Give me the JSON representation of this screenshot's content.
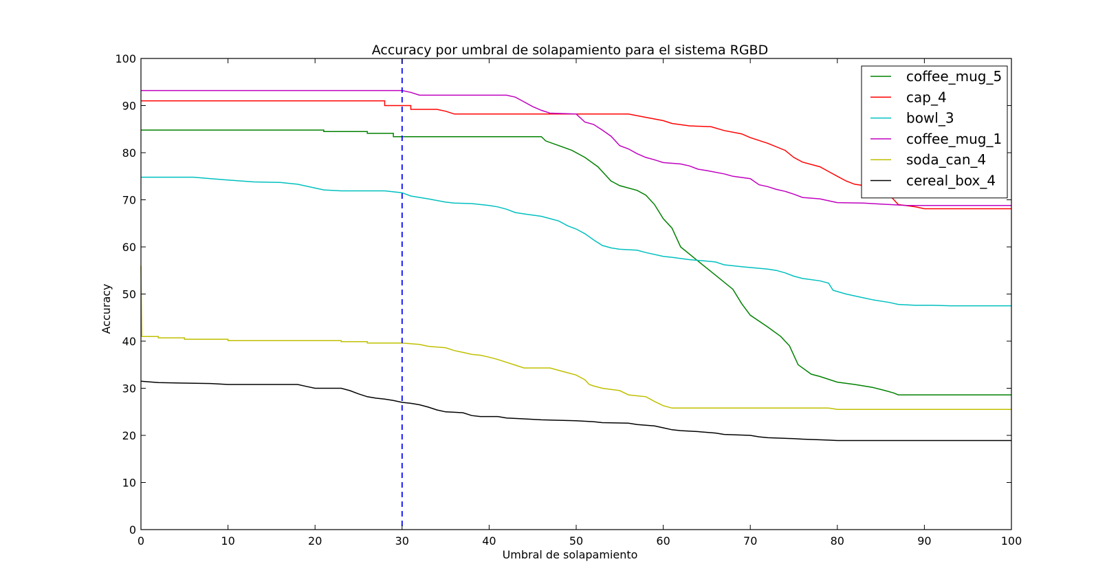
{
  "chart_data": {
    "type": "line",
    "title": "Accuracy por umbral de solapamiento para el sistema RGBD",
    "xlabel": "Umbral de solapamiento",
    "ylabel": "Accuracy",
    "xlim": [
      0,
      100
    ],
    "ylim": [
      0,
      100
    ],
    "xticks": [
      "0",
      "10",
      "20",
      "30",
      "40",
      "50",
      "60",
      "70",
      "80",
      "90",
      "100"
    ],
    "yticks": [
      "0",
      "10",
      "20",
      "30",
      "40",
      "50",
      "60",
      "70",
      "80",
      "90",
      "100"
    ],
    "grid": false,
    "legend_position": "top-right",
    "vline": {
      "x": 30,
      "color": "#0000ff",
      "style": "dashed"
    },
    "series": [
      {
        "name": "coffee_mug_5",
        "color": "#008000",
        "points": [
          [
            0,
            84.8
          ],
          [
            21,
            84.8
          ],
          [
            21,
            84.5
          ],
          [
            26,
            84.5
          ],
          [
            26,
            84.1
          ],
          [
            29,
            84.1
          ],
          [
            29,
            83.4
          ],
          [
            46,
            83.4
          ],
          [
            46.5,
            82.5
          ],
          [
            48,
            81.5
          ],
          [
            49.5,
            80.5
          ],
          [
            51,
            79
          ],
          [
            52.5,
            77
          ],
          [
            54,
            74
          ],
          [
            55,
            73
          ],
          [
            57,
            72
          ],
          [
            58,
            71
          ],
          [
            59,
            69
          ],
          [
            60,
            66
          ],
          [
            61,
            64
          ],
          [
            62,
            60
          ],
          [
            64,
            57
          ],
          [
            66,
            54
          ],
          [
            68,
            51
          ],
          [
            69,
            48
          ],
          [
            70,
            45.5
          ],
          [
            72,
            43
          ],
          [
            73.5,
            41
          ],
          [
            74.5,
            39
          ],
          [
            75.5,
            35
          ],
          [
            77,
            33
          ],
          [
            78,
            32.5
          ],
          [
            80,
            31.3
          ],
          [
            82,
            30.8
          ],
          [
            84,
            30.2
          ],
          [
            85.5,
            29.5
          ],
          [
            86.5,
            29
          ],
          [
            87,
            28.6
          ],
          [
            100,
            28.6
          ]
        ]
      },
      {
        "name": "cap_4",
        "color": "#ff0000",
        "points": [
          [
            0,
            91
          ],
          [
            28,
            91
          ],
          [
            28,
            90
          ],
          [
            31,
            90
          ],
          [
            31,
            89.2
          ],
          [
            34,
            89.2
          ],
          [
            35,
            88.8
          ],
          [
            36,
            88.2
          ],
          [
            56,
            88.2
          ],
          [
            58,
            87.5
          ],
          [
            60,
            86.8
          ],
          [
            61,
            86.2
          ],
          [
            63,
            85.7
          ],
          [
            65.5,
            85.5
          ],
          [
            67,
            84.7
          ],
          [
            69,
            84
          ],
          [
            70,
            83.2
          ],
          [
            72,
            82
          ],
          [
            74,
            80.5
          ],
          [
            75,
            79
          ],
          [
            76,
            78
          ],
          [
            78,
            77
          ],
          [
            79,
            76
          ],
          [
            80,
            75
          ],
          [
            81,
            74
          ],
          [
            82,
            73.3
          ],
          [
            85,
            72.5
          ],
          [
            86,
            71
          ],
          [
            86.5,
            70
          ],
          [
            87,
            69
          ],
          [
            89,
            68.5
          ],
          [
            90,
            68.1
          ],
          [
            100,
            68.1
          ]
        ]
      },
      {
        "name": "bowl_3",
        "color": "#00bfbf",
        "points": [
          [
            0,
            74.8
          ],
          [
            6,
            74.8
          ],
          [
            8,
            74.5
          ],
          [
            10,
            74.2
          ],
          [
            13,
            73.8
          ],
          [
            16,
            73.7
          ],
          [
            18,
            73.3
          ],
          [
            20,
            72.5
          ],
          [
            21,
            72.1
          ],
          [
            23,
            71.9
          ],
          [
            28,
            71.9
          ],
          [
            30,
            71.5
          ],
          [
            31,
            70.8
          ],
          [
            33,
            70.2
          ],
          [
            35,
            69.5
          ],
          [
            36,
            69.3
          ],
          [
            38,
            69.2
          ],
          [
            40,
            68.8
          ],
          [
            41,
            68.5
          ],
          [
            42,
            68
          ],
          [
            43,
            67.3
          ],
          [
            44,
            67
          ],
          [
            46,
            66.5
          ],
          [
            47,
            66
          ],
          [
            48,
            65.5
          ],
          [
            49,
            64.5
          ],
          [
            50,
            63.8
          ],
          [
            51,
            62.8
          ],
          [
            52,
            61.5
          ],
          [
            53,
            60.3
          ],
          [
            54,
            59.8
          ],
          [
            55,
            59.5
          ],
          [
            57,
            59.3
          ],
          [
            58,
            58.8
          ],
          [
            60,
            58
          ],
          [
            61,
            57.8
          ],
          [
            63,
            57.3
          ],
          [
            65,
            57
          ],
          [
            66,
            56.8
          ],
          [
            67,
            56.2
          ],
          [
            69,
            55.8
          ],
          [
            72,
            55.3
          ],
          [
            73,
            55
          ],
          [
            74,
            54.5
          ],
          [
            75,
            53.8
          ],
          [
            76,
            53.3
          ],
          [
            78,
            52.8
          ],
          [
            79,
            52.3
          ],
          [
            79.5,
            50.8
          ],
          [
            81,
            50
          ],
          [
            83,
            49.2
          ],
          [
            84,
            48.8
          ],
          [
            86,
            48.2
          ],
          [
            87,
            47.8
          ],
          [
            89,
            47.6
          ],
          [
            91,
            47.6
          ],
          [
            93,
            47.5
          ],
          [
            100,
            47.5
          ]
        ]
      },
      {
        "name": "coffee_mug_1",
        "color": "#bf00bf",
        "points": [
          [
            0,
            93.2
          ],
          [
            30,
            93.2
          ],
          [
            31,
            92.8
          ],
          [
            32,
            92.2
          ],
          [
            42,
            92.2
          ],
          [
            43,
            91.8
          ],
          [
            44,
            90.8
          ],
          [
            45,
            89.8
          ],
          [
            46,
            89
          ],
          [
            47,
            88.4
          ],
          [
            50,
            88.2
          ],
          [
            51,
            86.5
          ],
          [
            52,
            86
          ],
          [
            53,
            84.8
          ],
          [
            54,
            83.5
          ],
          [
            55,
            81.5
          ],
          [
            56,
            80.8
          ],
          [
            57,
            79.8
          ],
          [
            58,
            79
          ],
          [
            59,
            78.5
          ],
          [
            60,
            77.9
          ],
          [
            62,
            77.6
          ],
          [
            63,
            77.2
          ],
          [
            64,
            76.5
          ],
          [
            65,
            76.2
          ],
          [
            67,
            75.5
          ],
          [
            68,
            75
          ],
          [
            70,
            74.5
          ],
          [
            71,
            73.2
          ],
          [
            72,
            72.8
          ],
          [
            73,
            72.2
          ],
          [
            74,
            71.8
          ],
          [
            75,
            71.2
          ],
          [
            76,
            70.5
          ],
          [
            78,
            70.2
          ],
          [
            79,
            69.8
          ],
          [
            80,
            69.4
          ],
          [
            83,
            69.3
          ],
          [
            84,
            69.2
          ],
          [
            86,
            69
          ],
          [
            88,
            68.8
          ],
          [
            100,
            68.8
          ]
        ]
      },
      {
        "name": "soda_can_4",
        "color": "#bfbf00",
        "points": [
          [
            0,
            56
          ],
          [
            0.1,
            41
          ],
          [
            2,
            41
          ],
          [
            2,
            40.7
          ],
          [
            5,
            40.7
          ],
          [
            5,
            40.4
          ],
          [
            10,
            40.4
          ],
          [
            10,
            40.1
          ],
          [
            23,
            40.1
          ],
          [
            23,
            39.9
          ],
          [
            26,
            39.9
          ],
          [
            26,
            39.6
          ],
          [
            30,
            39.6
          ],
          [
            32,
            39.3
          ],
          [
            33,
            38.9
          ],
          [
            35,
            38.6
          ],
          [
            36,
            38
          ],
          [
            37,
            37.6
          ],
          [
            38,
            37.2
          ],
          [
            39,
            37
          ],
          [
            40,
            36.6
          ],
          [
            41,
            36.1
          ],
          [
            42,
            35.5
          ],
          [
            43,
            34.9
          ],
          [
            44,
            34.3
          ],
          [
            47,
            34.3
          ],
          [
            48,
            33.8
          ],
          [
            49,
            33.3
          ],
          [
            50,
            32.8
          ],
          [
            51,
            31.8
          ],
          [
            51.5,
            30.8
          ],
          [
            52,
            30.5
          ],
          [
            53,
            30
          ],
          [
            55,
            29.5
          ],
          [
            56,
            28.6
          ],
          [
            57,
            28.4
          ],
          [
            58,
            28.2
          ],
          [
            59,
            27.2
          ],
          [
            60,
            26.3
          ],
          [
            61,
            25.8
          ],
          [
            79,
            25.8
          ],
          [
            80,
            25.5
          ],
          [
            100,
            25.5
          ]
        ]
      },
      {
        "name": "cereal_box_4",
        "color": "#000000",
        "points": [
          [
            0,
            31.5
          ],
          [
            2,
            31.2
          ],
          [
            5,
            31.1
          ],
          [
            8,
            31
          ],
          [
            10,
            30.8
          ],
          [
            18,
            30.8
          ],
          [
            19,
            30.4
          ],
          [
            20,
            30
          ],
          [
            23,
            30
          ],
          [
            24,
            29.5
          ],
          [
            25,
            28.8
          ],
          [
            26,
            28.2
          ],
          [
            27,
            27.9
          ],
          [
            28,
            27.7
          ],
          [
            29,
            27.4
          ],
          [
            30,
            27
          ],
          [
            31,
            26.8
          ],
          [
            32,
            26.5
          ],
          [
            33,
            26
          ],
          [
            34,
            25.4
          ],
          [
            35,
            25
          ],
          [
            36,
            24.9
          ],
          [
            37,
            24.8
          ],
          [
            38,
            24.2
          ],
          [
            39,
            24
          ],
          [
            41,
            24
          ],
          [
            42,
            23.7
          ],
          [
            44,
            23.5
          ],
          [
            46,
            23.3
          ],
          [
            50,
            23.1
          ],
          [
            52,
            22.9
          ],
          [
            53,
            22.7
          ],
          [
            56,
            22.6
          ],
          [
            57,
            22.3
          ],
          [
            59,
            22
          ],
          [
            60,
            21.6
          ],
          [
            61,
            21.2
          ],
          [
            62,
            21
          ],
          [
            64,
            20.8
          ],
          [
            66,
            20.5
          ],
          [
            67,
            20.2
          ],
          [
            70,
            20
          ],
          [
            71,
            19.7
          ],
          [
            72,
            19.5
          ],
          [
            75,
            19.3
          ],
          [
            76,
            19.2
          ],
          [
            79,
            19
          ],
          [
            80,
            18.9
          ],
          [
            100,
            18.9
          ]
        ]
      }
    ]
  }
}
